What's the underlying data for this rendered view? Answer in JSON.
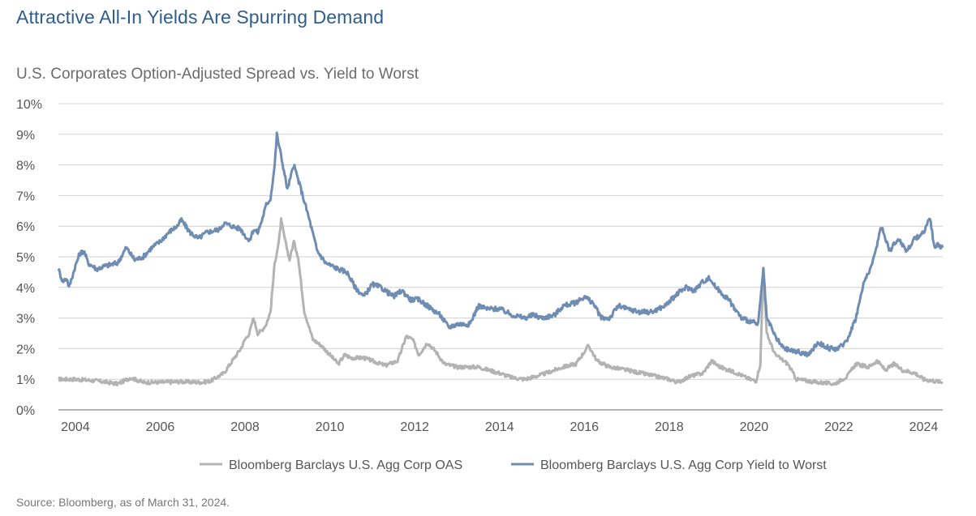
{
  "title": "Attractive All-In Yields Are Spurring Demand",
  "subtitle": "U.S. Corporates Option-Adjusted Spread vs. Yield to Worst",
  "source": "Source: Bloomberg, as of March 31, 2024.",
  "colors": {
    "oas": "#b3b3b3",
    "ytw": "#6f8db3",
    "grid": "#d0d0d0",
    "title": "#2f5d8c"
  },
  "chart_data": {
    "type": "line",
    "xlim": [
      2003.6,
      2024.45
    ],
    "ylim": [
      0,
      10
    ],
    "yticks": [
      "0%",
      "1%",
      "2%",
      "3%",
      "4%",
      "5%",
      "6%",
      "7%",
      "8%",
      "9%",
      "10%"
    ],
    "xticks": [
      "2004",
      "2006",
      "2008",
      "2010",
      "2012",
      "2014",
      "2016",
      "2018",
      "2020",
      "2022",
      "2024"
    ],
    "grid": true,
    "legend_position": "bottom",
    "series": [
      {
        "name": "Bloomberg Barclays U.S. Agg Corp OAS",
        "color": "#b3b3b3",
        "points": [
          [
            2003.6,
            1.0
          ],
          [
            2004.0,
            1.0
          ],
          [
            2004.5,
            0.95
          ],
          [
            2005.0,
            0.85
          ],
          [
            2005.3,
            1.05
          ],
          [
            2005.6,
            0.9
          ],
          [
            2006.0,
            0.9
          ],
          [
            2006.5,
            0.92
          ],
          [
            2007.0,
            0.9
          ],
          [
            2007.2,
            0.95
          ],
          [
            2007.5,
            1.2
          ],
          [
            2007.7,
            1.6
          ],
          [
            2007.9,
            2.0
          ],
          [
            2008.0,
            2.3
          ],
          [
            2008.1,
            2.5
          ],
          [
            2008.2,
            3.0
          ],
          [
            2008.3,
            2.5
          ],
          [
            2008.4,
            2.6
          ],
          [
            2008.5,
            2.8
          ],
          [
            2008.6,
            3.2
          ],
          [
            2008.7,
            4.8
          ],
          [
            2008.8,
            5.5
          ],
          [
            2008.85,
            6.2
          ],
          [
            2008.95,
            5.5
          ],
          [
            2009.05,
            4.9
          ],
          [
            2009.15,
            5.5
          ],
          [
            2009.25,
            5.0
          ],
          [
            2009.4,
            3.2
          ],
          [
            2009.6,
            2.3
          ],
          [
            2009.8,
            2.1
          ],
          [
            2010.0,
            1.8
          ],
          [
            2010.2,
            1.5
          ],
          [
            2010.35,
            1.8
          ],
          [
            2010.5,
            1.7
          ],
          [
            2010.8,
            1.7
          ],
          [
            2011.0,
            1.6
          ],
          [
            2011.3,
            1.45
          ],
          [
            2011.6,
            1.6
          ],
          [
            2011.8,
            2.4
          ],
          [
            2011.95,
            2.3
          ],
          [
            2012.1,
            1.8
          ],
          [
            2012.3,
            2.2
          ],
          [
            2012.5,
            1.9
          ],
          [
            2012.7,
            1.5
          ],
          [
            2013.0,
            1.4
          ],
          [
            2013.5,
            1.4
          ],
          [
            2014.0,
            1.2
          ],
          [
            2014.3,
            1.05
          ],
          [
            2014.6,
            1.0
          ],
          [
            2015.0,
            1.15
          ],
          [
            2015.5,
            1.4
          ],
          [
            2015.8,
            1.5
          ],
          [
            2016.0,
            1.9
          ],
          [
            2016.1,
            2.1
          ],
          [
            2016.3,
            1.6
          ],
          [
            2016.6,
            1.4
          ],
          [
            2017.0,
            1.3
          ],
          [
            2017.5,
            1.15
          ],
          [
            2018.0,
            1.0
          ],
          [
            2018.2,
            0.9
          ],
          [
            2018.5,
            1.1
          ],
          [
            2018.8,
            1.2
          ],
          [
            2019.0,
            1.6
          ],
          [
            2019.2,
            1.4
          ],
          [
            2019.6,
            1.2
          ],
          [
            2019.9,
            1.0
          ],
          [
            2020.05,
            0.95
          ],
          [
            2020.15,
            1.5
          ],
          [
            2020.22,
            4.6
          ],
          [
            2020.3,
            2.5
          ],
          [
            2020.5,
            1.8
          ],
          [
            2020.8,
            1.5
          ],
          [
            2021.0,
            1.0
          ],
          [
            2021.5,
            0.9
          ],
          [
            2021.9,
            0.85
          ],
          [
            2022.2,
            1.1
          ],
          [
            2022.4,
            1.5
          ],
          [
            2022.7,
            1.4
          ],
          [
            2022.9,
            1.6
          ],
          [
            2023.1,
            1.3
          ],
          [
            2023.3,
            1.5
          ],
          [
            2023.5,
            1.3
          ],
          [
            2023.8,
            1.2
          ],
          [
            2024.0,
            1.0
          ],
          [
            2024.45,
            0.9
          ]
        ]
      },
      {
        "name": "Bloomberg Barclays U.S. Agg Corp Yield to Worst",
        "color": "#6f8db3",
        "points": [
          [
            2003.6,
            4.6
          ],
          [
            2003.7,
            4.2
          ],
          [
            2003.8,
            4.3
          ],
          [
            2003.85,
            4.0
          ],
          [
            2004.0,
            4.7
          ],
          [
            2004.1,
            5.1
          ],
          [
            2004.2,
            5.2
          ],
          [
            2004.3,
            4.8
          ],
          [
            2004.5,
            4.6
          ],
          [
            2004.7,
            4.7
          ],
          [
            2005.0,
            4.8
          ],
          [
            2005.2,
            5.3
          ],
          [
            2005.4,
            4.9
          ],
          [
            2005.6,
            5.0
          ],
          [
            2005.8,
            5.3
          ],
          [
            2006.0,
            5.5
          ],
          [
            2006.2,
            5.8
          ],
          [
            2006.4,
            6.0
          ],
          [
            2006.5,
            6.2
          ],
          [
            2006.7,
            5.8
          ],
          [
            2006.9,
            5.6
          ],
          [
            2007.1,
            5.8
          ],
          [
            2007.4,
            5.9
          ],
          [
            2007.5,
            6.1
          ],
          [
            2007.7,
            6.0
          ],
          [
            2007.9,
            5.9
          ],
          [
            2008.0,
            5.7
          ],
          [
            2008.1,
            5.5
          ],
          [
            2008.2,
            5.9
          ],
          [
            2008.3,
            5.8
          ],
          [
            2008.4,
            6.2
          ],
          [
            2008.5,
            6.7
          ],
          [
            2008.6,
            6.9
          ],
          [
            2008.7,
            8.0
          ],
          [
            2008.75,
            9.0
          ],
          [
            2008.85,
            8.3
          ],
          [
            2009.0,
            7.2
          ],
          [
            2009.15,
            8.0
          ],
          [
            2009.3,
            7.3
          ],
          [
            2009.5,
            6.3
          ],
          [
            2009.7,
            5.2
          ],
          [
            2009.9,
            4.8
          ],
          [
            2010.2,
            4.6
          ],
          [
            2010.4,
            4.5
          ],
          [
            2010.6,
            4.0
          ],
          [
            2010.8,
            3.7
          ],
          [
            2011.0,
            4.1
          ],
          [
            2011.2,
            4.0
          ],
          [
            2011.5,
            3.7
          ],
          [
            2011.7,
            3.9
          ],
          [
            2011.9,
            3.6
          ],
          [
            2012.1,
            3.6
          ],
          [
            2012.3,
            3.4
          ],
          [
            2012.6,
            3.1
          ],
          [
            2012.8,
            2.7
          ],
          [
            2013.0,
            2.8
          ],
          [
            2013.3,
            2.8
          ],
          [
            2013.5,
            3.4
          ],
          [
            2013.7,
            3.3
          ],
          [
            2014.0,
            3.3
          ],
          [
            2014.3,
            3.1
          ],
          [
            2014.6,
            3.0
          ],
          [
            2014.8,
            3.1
          ],
          [
            2015.0,
            3.0
          ],
          [
            2015.3,
            3.1
          ],
          [
            2015.5,
            3.4
          ],
          [
            2015.8,
            3.5
          ],
          [
            2016.0,
            3.7
          ],
          [
            2016.2,
            3.5
          ],
          [
            2016.4,
            3.0
          ],
          [
            2016.6,
            3.0
          ],
          [
            2016.8,
            3.4
          ],
          [
            2017.0,
            3.3
          ],
          [
            2017.3,
            3.2
          ],
          [
            2017.6,
            3.2
          ],
          [
            2017.9,
            3.4
          ],
          [
            2018.2,
            3.8
          ],
          [
            2018.4,
            4.0
          ],
          [
            2018.6,
            3.9
          ],
          [
            2018.8,
            4.2
          ],
          [
            2018.95,
            4.3
          ],
          [
            2019.1,
            4.0
          ],
          [
            2019.4,
            3.6
          ],
          [
            2019.7,
            3.0
          ],
          [
            2019.9,
            2.9
          ],
          [
            2020.1,
            2.8
          ],
          [
            2020.22,
            4.6
          ],
          [
            2020.3,
            3.0
          ],
          [
            2020.5,
            2.4
          ],
          [
            2020.7,
            2.0
          ],
          [
            2021.0,
            1.9
          ],
          [
            2021.3,
            1.8
          ],
          [
            2021.5,
            2.2
          ],
          [
            2021.8,
            2.0
          ],
          [
            2022.0,
            2.0
          ],
          [
            2022.2,
            2.3
          ],
          [
            2022.4,
            3.0
          ],
          [
            2022.6,
            4.2
          ],
          [
            2022.8,
            4.8
          ],
          [
            2023.0,
            6.0
          ],
          [
            2023.2,
            5.2
          ],
          [
            2023.4,
            5.6
          ],
          [
            2023.6,
            5.2
          ],
          [
            2023.8,
            5.6
          ],
          [
            2024.0,
            5.8
          ],
          [
            2024.15,
            6.3
          ],
          [
            2024.25,
            5.3
          ],
          [
            2024.35,
            5.4
          ],
          [
            2024.45,
            5.3
          ]
        ]
      }
    ]
  }
}
